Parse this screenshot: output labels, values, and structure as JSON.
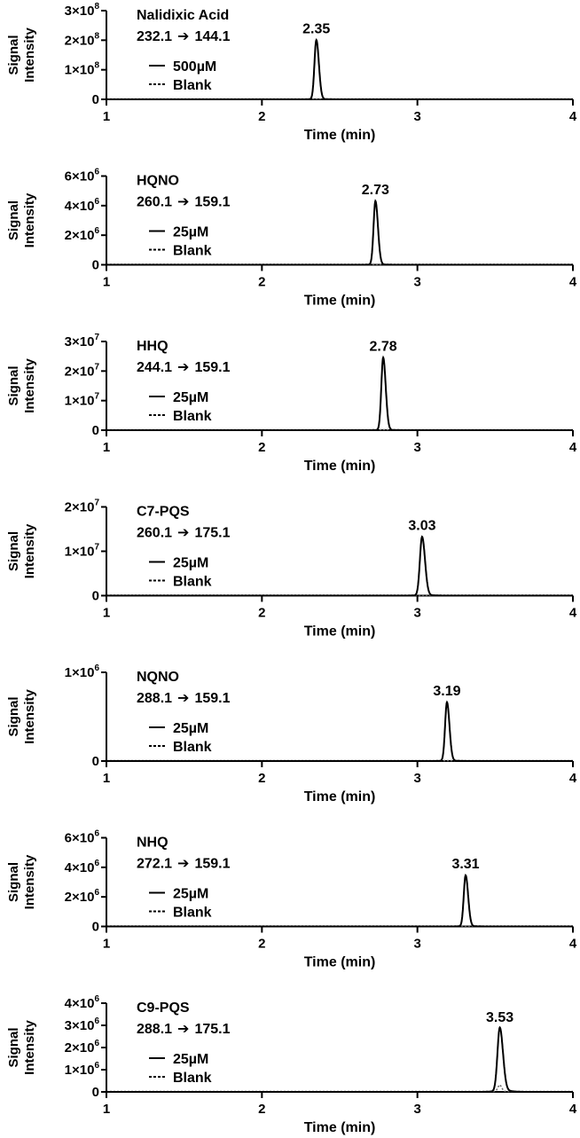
{
  "shared": {
    "ylabel_line1": "Signal",
    "ylabel_line2": "Intensity",
    "xlabel": "Time (min)",
    "x_ticks": [
      "1",
      "2",
      "3",
      "4"
    ],
    "blank_label": "Blank",
    "arrow": "➔"
  },
  "chart_data": [
    {
      "type": "line",
      "compound": "Nalidixic Acid",
      "transition_from": "232.1",
      "transition_to": "144.1",
      "concentration": "500µM",
      "peak_label": "2.35",
      "peak_time": 2.35,
      "peak_height": 200000000,
      "peak_width": 0.012,
      "blank_level": 0.003,
      "xlim": [
        1,
        4
      ],
      "ylim": [
        0,
        300000000
      ],
      "y_ticks": [
        {
          "value": 0,
          "base": "0",
          "exp": ""
        },
        {
          "value": 100000000,
          "base": "1×10",
          "exp": "8"
        },
        {
          "value": 200000000,
          "base": "2×10",
          "exp": "8"
        },
        {
          "value": 300000000,
          "base": "3×10",
          "exp": "8"
        }
      ],
      "series": [
        {
          "name": "500µM",
          "style": "solid"
        },
        {
          "name": "Blank",
          "style": "dotted"
        }
      ]
    },
    {
      "type": "line",
      "compound": "HQNO",
      "transition_from": "260.1",
      "transition_to": "159.1",
      "concentration": "25µM",
      "peak_label": "2.73",
      "peak_time": 2.73,
      "peak_height": 4300000,
      "peak_width": 0.012,
      "blank_level": 0.003,
      "xlim": [
        1,
        4
      ],
      "ylim": [
        0,
        6000000
      ],
      "y_ticks": [
        {
          "value": 0,
          "base": "0",
          "exp": ""
        },
        {
          "value": 2000000,
          "base": "2×10",
          "exp": "6"
        },
        {
          "value": 4000000,
          "base": "4×10",
          "exp": "6"
        },
        {
          "value": 6000000,
          "base": "6×10",
          "exp": "6"
        }
      ],
      "series": [
        {
          "name": "25µM",
          "style": "solid"
        },
        {
          "name": "Blank",
          "style": "dotted"
        }
      ]
    },
    {
      "type": "line",
      "compound": "HHQ",
      "transition_from": "244.1",
      "transition_to": "159.1",
      "concentration": "25µM",
      "peak_label": "2.78",
      "peak_time": 2.78,
      "peak_height": 24500000,
      "peak_width": 0.012,
      "blank_level": 0.003,
      "xlim": [
        1,
        4
      ],
      "ylim": [
        0,
        30000000
      ],
      "y_ticks": [
        {
          "value": 0,
          "base": "0",
          "exp": ""
        },
        {
          "value": 10000000,
          "base": "1×10",
          "exp": "7"
        },
        {
          "value": 20000000,
          "base": "2×10",
          "exp": "7"
        },
        {
          "value": 30000000,
          "base": "3×10",
          "exp": "7"
        }
      ],
      "series": [
        {
          "name": "25µM",
          "style": "solid"
        },
        {
          "name": "Blank",
          "style": "dotted"
        }
      ]
    },
    {
      "type": "line",
      "compound": "C7-PQS",
      "transition_from": "260.1",
      "transition_to": "175.1",
      "concentration": "25µM",
      "peak_label": "3.03",
      "peak_time": 3.03,
      "peak_height": 13200000,
      "peak_width": 0.014,
      "blank_level": 0.006,
      "xlim": [
        1,
        4
      ],
      "ylim": [
        0,
        20000000
      ],
      "y_ticks": [
        {
          "value": 0,
          "base": "0",
          "exp": ""
        },
        {
          "value": 10000000,
          "base": "1×10",
          "exp": "7"
        },
        {
          "value": 20000000,
          "base": "2×10",
          "exp": "7"
        }
      ],
      "series": [
        {
          "name": "25µM",
          "style": "solid"
        },
        {
          "name": "Blank",
          "style": "dotted"
        }
      ]
    },
    {
      "type": "line",
      "compound": "NQNO",
      "transition_from": "288.1",
      "transition_to": "159.1",
      "concentration": "25µM",
      "peak_label": "3.19",
      "peak_time": 3.19,
      "peak_height": 660000,
      "peak_width": 0.012,
      "blank_level": 0.005,
      "xlim": [
        1,
        4
      ],
      "ylim": [
        0,
        1000000
      ],
      "y_ticks": [
        {
          "value": 0,
          "base": "0",
          "exp": ""
        },
        {
          "value": 1000000,
          "base": "1×10",
          "exp": "6"
        }
      ],
      "series": [
        {
          "name": "25µM",
          "style": "solid"
        },
        {
          "name": "Blank",
          "style": "dotted"
        }
      ]
    },
    {
      "type": "line",
      "compound": "NHQ",
      "transition_from": "272.1",
      "transition_to": "159.1",
      "concentration": "25µM",
      "peak_label": "3.31",
      "peak_time": 3.31,
      "peak_height": 3450000,
      "peak_width": 0.012,
      "blank_level": 0.004,
      "xlim": [
        1,
        4
      ],
      "ylim": [
        0,
        6000000
      ],
      "y_ticks": [
        {
          "value": 0,
          "base": "0",
          "exp": ""
        },
        {
          "value": 2000000,
          "base": "2×10",
          "exp": "6"
        },
        {
          "value": 4000000,
          "base": "4×10",
          "exp": "6"
        },
        {
          "value": 6000000,
          "base": "6×10",
          "exp": "6"
        }
      ],
      "series": [
        {
          "name": "25µM",
          "style": "solid"
        },
        {
          "name": "Blank",
          "style": "dotted"
        }
      ]
    },
    {
      "type": "line",
      "compound": "C9-PQS",
      "transition_from": "288.1",
      "transition_to": "175.1",
      "concentration": "25µM",
      "peak_label": "3.53",
      "peak_time": 3.53,
      "peak_height": 2850000,
      "peak_width": 0.015,
      "blank_level": 0.02,
      "blank_peak": 300000,
      "xlim": [
        1,
        4
      ],
      "ylim": [
        0,
        4000000
      ],
      "y_ticks": [
        {
          "value": 0,
          "base": "0",
          "exp": ""
        },
        {
          "value": 1000000,
          "base": "1×10",
          "exp": "6"
        },
        {
          "value": 2000000,
          "base": "2×10",
          "exp": "6"
        },
        {
          "value": 3000000,
          "base": "3×10",
          "exp": "6"
        },
        {
          "value": 4000000,
          "base": "4×10",
          "exp": "6"
        }
      ],
      "series": [
        {
          "name": "25µM",
          "style": "solid"
        },
        {
          "name": "Blank",
          "style": "dotted"
        }
      ]
    }
  ]
}
